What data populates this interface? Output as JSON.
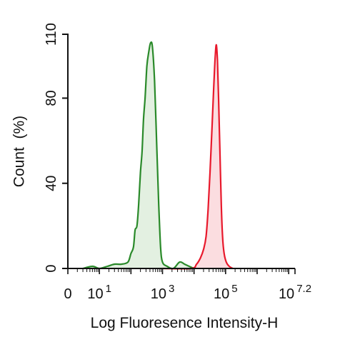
{
  "chart_data": {
    "type": "area",
    "title": "",
    "xlabel": "Log Fluoresence Intensity-H",
    "ylabel": "Count  (%)",
    "x_scale": "log",
    "xlim": [
      1,
      15848932
    ],
    "ylim": [
      0,
      110
    ],
    "x_ticks": [
      {
        "base": "0",
        "exp": "",
        "value": 1
      },
      {
        "base": "10",
        "exp": "1",
        "value": 10
      },
      {
        "base": "10",
        "exp": "3",
        "value": 1000
      },
      {
        "base": "10",
        "exp": "5",
        "value": 100000
      },
      {
        "base": "10",
        "exp": "7.2",
        "value": 15848932
      }
    ],
    "y_ticks": [
      {
        "label": "0",
        "value": 0
      },
      {
        "label": "40",
        "value": 40
      },
      {
        "label": "80",
        "value": 80
      },
      {
        "label": "110",
        "value": 110
      }
    ],
    "grid": false,
    "colors": {
      "green_line": "#2a8a2a",
      "green_fill": "#e3f0e1",
      "red_line": "#e8192c",
      "red_fill": "#fbdde0",
      "axis": "#111111"
    },
    "series": [
      {
        "color": "green",
        "points": [
          [
            3,
            0
          ],
          [
            6,
            1
          ],
          [
            10,
            0
          ],
          [
            18,
            1
          ],
          [
            30,
            2
          ],
          [
            50,
            2
          ],
          [
            80,
            3
          ],
          [
            100,
            7
          ],
          [
            120,
            10
          ],
          [
            135,
            18
          ],
          [
            155,
            20
          ],
          [
            175,
            30
          ],
          [
            200,
            45
          ],
          [
            225,
            55
          ],
          [
            250,
            70
          ],
          [
            280,
            80
          ],
          [
            320,
            95
          ],
          [
            370,
            102
          ],
          [
            420,
            106
          ],
          [
            480,
            104
          ],
          [
            560,
            88
          ],
          [
            650,
            60
          ],
          [
            760,
            30
          ],
          [
            870,
            10
          ],
          [
            1000,
            3
          ],
          [
            1400,
            1
          ],
          [
            2200,
            0
          ],
          [
            3500,
            3
          ],
          [
            5000,
            2
          ],
          [
            7000,
            1
          ],
          [
            10000,
            0
          ]
        ]
      },
      {
        "color": "red",
        "points": [
          [
            1000,
            0
          ],
          [
            8000,
            0
          ],
          [
            12000,
            2
          ],
          [
            16000,
            5
          ],
          [
            20000,
            9
          ],
          [
            24000,
            15
          ],
          [
            28000,
            28
          ],
          [
            32000,
            45
          ],
          [
            37000,
            66
          ],
          [
            42000,
            85
          ],
          [
            47000,
            100
          ],
          [
            51000,
            105
          ],
          [
            55000,
            98
          ],
          [
            60000,
            80
          ],
          [
            66000,
            55
          ],
          [
            73000,
            30
          ],
          [
            80000,
            15
          ],
          [
            90000,
            7
          ],
          [
            105000,
            3
          ],
          [
            130000,
            1
          ],
          [
            170000,
            0
          ]
        ]
      }
    ]
  }
}
